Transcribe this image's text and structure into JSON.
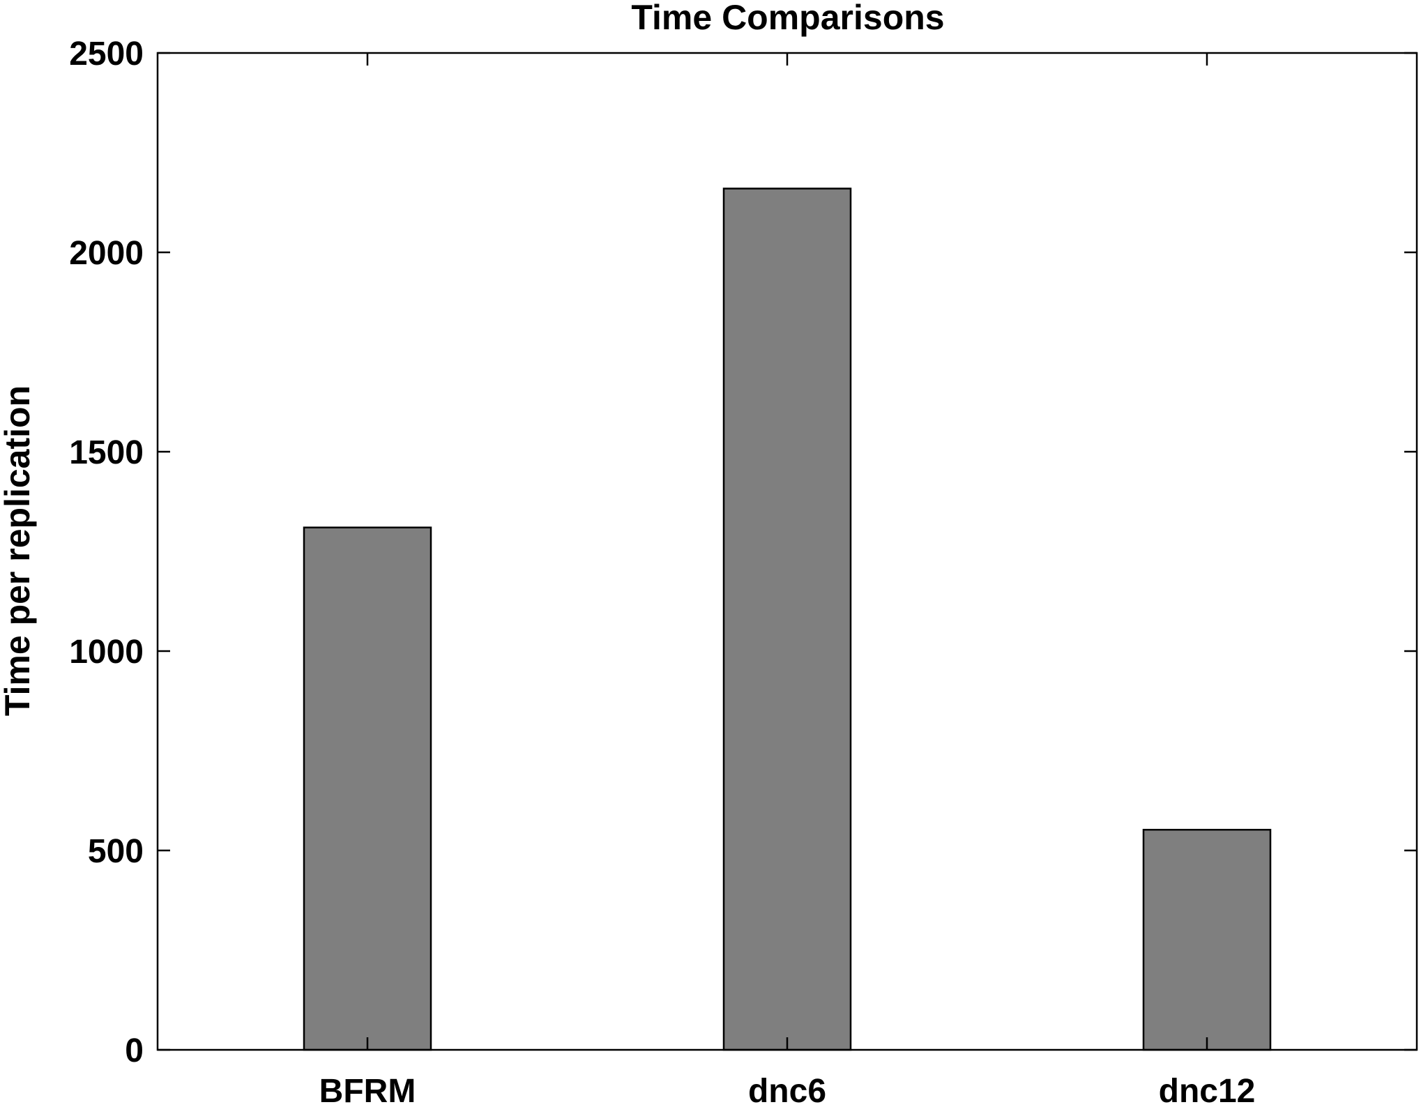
{
  "chart_data": {
    "type": "bar",
    "title": "Time Comparisons",
    "xlabel": "",
    "ylabel": "Time per replication",
    "categories": [
      "BFRM",
      "dnc6",
      "dnc12"
    ],
    "values": [
      1310,
      2160,
      552
    ],
    "ylim": [
      0,
      2500
    ],
    "yticks": [
      "0",
      "500",
      "1000",
      "1500",
      "2000",
      "2500"
    ],
    "bar_color": "#7f7f7f",
    "grid": false,
    "legend": "none"
  }
}
